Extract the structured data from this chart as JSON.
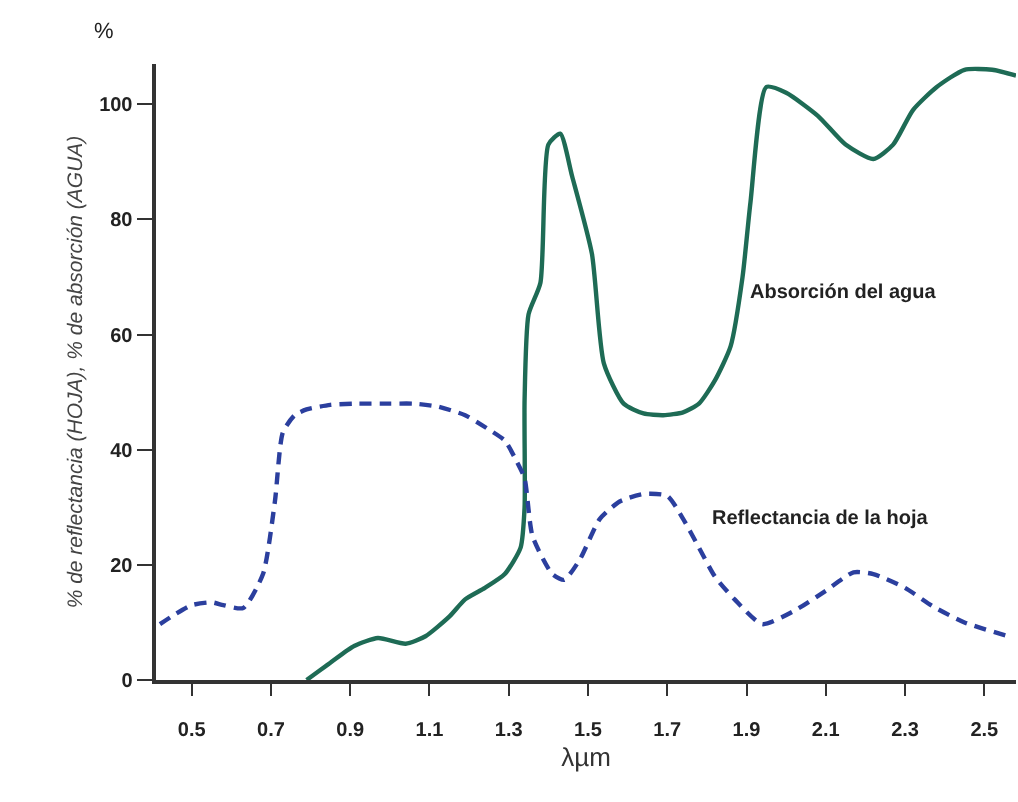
{
  "chart_data": {
    "type": "line",
    "ylabel": "% de reflectancia (HOJA), % de absorción (AGUA)",
    "xlabel": "λµm",
    "xlim": [
      0.41,
      2.58
    ],
    "xticks": [
      0.5,
      0.7,
      0.9,
      1.1,
      1.3,
      1.5,
      1.7,
      1.9,
      2.1,
      2.3,
      2.5
    ],
    "ylim": [
      0,
      107
    ],
    "yticks": [
      0,
      20,
      40,
      60,
      80,
      100
    ],
    "grid": false,
    "legend": false,
    "marker": "none",
    "series": [
      {
        "name": "Absorción del agua",
        "color": "#1e6b55",
        "line_style": "solid",
        "x": [
          0.79,
          0.85,
          0.91,
          0.97,
          1.04,
          1.09,
          1.15,
          1.19,
          1.24,
          1.29,
          1.33,
          1.34,
          1.34,
          1.35,
          1.38,
          1.4,
          1.43,
          1.46,
          1.51,
          1.54,
          1.59,
          1.64,
          1.69,
          1.74,
          1.78,
          1.82,
          1.86,
          1.89,
          1.91,
          1.95,
          2.0,
          2.08,
          2.15,
          2.22,
          2.27,
          2.32,
          2.38,
          2.45,
          2.52,
          2.58
        ],
        "values": [
          0,
          3,
          5.9,
          7.3,
          6.3,
          7.6,
          11,
          14,
          16,
          18.4,
          23,
          30,
          48.6,
          63.5,
          69,
          93,
          94.9,
          87.5,
          74,
          55,
          48,
          46.3,
          46,
          46.5,
          48,
          52,
          58,
          70,
          83,
          103,
          102,
          98,
          93,
          90.5,
          93,
          99,
          103,
          106,
          106,
          105
        ]
      },
      {
        "name": "Reflectancia de la hoja",
        "color": "#2b3f9e",
        "line_style": "dashed",
        "x": [
          0.42,
          0.46,
          0.5,
          0.55,
          0.58,
          0.63,
          0.68,
          0.71,
          0.73,
          0.76,
          0.79,
          0.85,
          0.91,
          1.0,
          1.06,
          1.12,
          1.19,
          1.25,
          1.29,
          1.32,
          1.34,
          1.36,
          1.41,
          1.44,
          1.48,
          1.53,
          1.58,
          1.64,
          1.7,
          1.74,
          1.78,
          1.82,
          1.87,
          1.94,
          2.02,
          2.1,
          2.17,
          2.22,
          2.3,
          2.37,
          2.45,
          2.56
        ],
        "values": [
          9.7,
          11.5,
          13,
          13.5,
          13,
          12.5,
          18.4,
          31,
          43,
          46,
          47,
          47.8,
          48,
          48,
          48,
          47.5,
          46,
          43.5,
          41.6,
          38,
          35,
          25,
          18.4,
          17.4,
          21,
          28,
          31,
          32.3,
          32,
          28,
          23,
          18,
          14,
          9.7,
          12,
          15.5,
          18.7,
          18.4,
          16,
          12.8,
          10,
          7.6
        ]
      }
    ],
    "annotations": [
      "%"
    ]
  }
}
